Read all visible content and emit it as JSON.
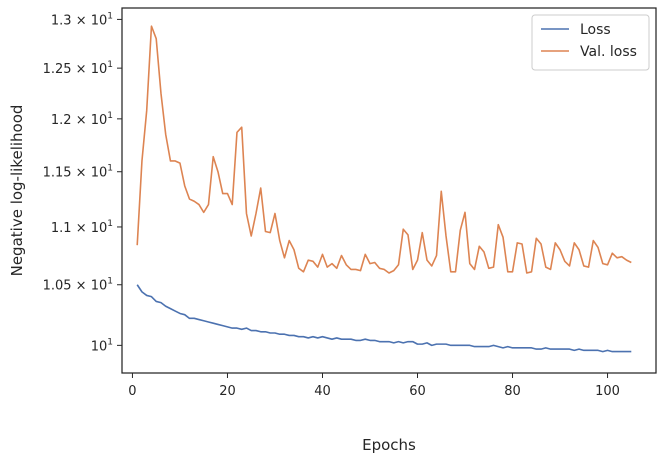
{
  "chart_data": {
    "type": "line",
    "title": "",
    "xlabel": "Epochs",
    "ylabel": "Negative log-likelihood",
    "xlim": [
      -2.2,
      110.2
    ],
    "ylim": [
      9.78,
      13.12
    ],
    "yscale": "log",
    "grid": false,
    "legend": "top-right",
    "xticks": [
      0,
      20,
      40,
      60,
      80,
      100
    ],
    "xtick_labels": [
      "0",
      "20",
      "40",
      "60",
      "80",
      "100"
    ],
    "yticks": [
      10.0,
      10.5,
      11.0,
      11.5,
      12.0,
      12.5,
      13.0
    ],
    "ytick_labels": [
      {
        "mantissa": "",
        "exp": "1"
      },
      {
        "mantissa": "1.05 × ",
        "exp": "1"
      },
      {
        "mantissa": "1.1 × ",
        "exp": "1"
      },
      {
        "mantissa": "1.15 × ",
        "exp": "1"
      },
      {
        "mantissa": "1.2 × ",
        "exp": "1"
      },
      {
        "mantissa": "1.25 × ",
        "exp": "1"
      },
      {
        "mantissa": "1.3 × ",
        "exp": "1"
      }
    ],
    "ytick_base": "10",
    "series": [
      {
        "name": "Loss",
        "color": "#4c72b0",
        "x": [
          1,
          2,
          3,
          4,
          5,
          6,
          7,
          8,
          9,
          10,
          11,
          12,
          13,
          14,
          15,
          16,
          17,
          18,
          19,
          20,
          21,
          22,
          23,
          24,
          25,
          26,
          27,
          28,
          29,
          30,
          31,
          32,
          33,
          34,
          35,
          36,
          37,
          38,
          39,
          40,
          41,
          42,
          43,
          44,
          45,
          46,
          47,
          48,
          49,
          50,
          51,
          52,
          53,
          54,
          55,
          56,
          57,
          58,
          59,
          60,
          61,
          62,
          63,
          64,
          65,
          66,
          67,
          68,
          69,
          70,
          71,
          72,
          73,
          74,
          75,
          76,
          77,
          78,
          79,
          80,
          81,
          82,
          83,
          84,
          85,
          86,
          87,
          88,
          89,
          90,
          91,
          92,
          93,
          94,
          95,
          96,
          97,
          98,
          99,
          100,
          101,
          102,
          103,
          104,
          105
        ],
        "values": [
          10.5,
          10.44,
          10.41,
          10.4,
          10.36,
          10.35,
          10.32,
          10.3,
          10.28,
          10.26,
          10.25,
          10.22,
          10.22,
          10.21,
          10.2,
          10.19,
          10.18,
          10.17,
          10.16,
          10.15,
          10.14,
          10.14,
          10.13,
          10.14,
          10.12,
          10.12,
          10.11,
          10.11,
          10.1,
          10.1,
          10.09,
          10.09,
          10.08,
          10.08,
          10.07,
          10.07,
          10.06,
          10.07,
          10.06,
          10.07,
          10.06,
          10.05,
          10.06,
          10.05,
          10.05,
          10.05,
          10.04,
          10.04,
          10.05,
          10.04,
          10.04,
          10.03,
          10.03,
          10.03,
          10.02,
          10.03,
          10.02,
          10.03,
          10.03,
          10.01,
          10.01,
          10.02,
          10.0,
          10.01,
          10.01,
          10.01,
          10.0,
          10.0,
          10.0,
          10.0,
          10.0,
          9.99,
          9.99,
          9.99,
          9.99,
          10.0,
          9.99,
          9.98,
          9.99,
          9.98,
          9.98,
          9.98,
          9.98,
          9.98,
          9.97,
          9.97,
          9.98,
          9.97,
          9.97,
          9.97,
          9.97,
          9.97,
          9.96,
          9.97,
          9.96,
          9.96,
          9.96,
          9.96,
          9.95,
          9.96,
          9.95,
          9.95,
          9.95,
          9.95,
          9.95
        ]
      },
      {
        "name": "Val. loss",
        "color": "#dd8452",
        "x": [
          1,
          2,
          3,
          4,
          5,
          6,
          7,
          8,
          9,
          10,
          11,
          12,
          13,
          14,
          15,
          16,
          17,
          18,
          19,
          20,
          21,
          22,
          23,
          24,
          25,
          26,
          27,
          28,
          29,
          30,
          31,
          32,
          33,
          34,
          35,
          36,
          37,
          38,
          39,
          40,
          41,
          42,
          43,
          44,
          45,
          46,
          47,
          48,
          49,
          50,
          51,
          52,
          53,
          54,
          55,
          56,
          57,
          58,
          59,
          60,
          61,
          62,
          63,
          64,
          65,
          66,
          67,
          68,
          69,
          70,
          71,
          72,
          73,
          74,
          75,
          76,
          77,
          78,
          79,
          80,
          81,
          82,
          83,
          84,
          85,
          86,
          87,
          88,
          89,
          90,
          91,
          92,
          93,
          94,
          95,
          96,
          97,
          98,
          99,
          100,
          101,
          102,
          103,
          104,
          105
        ],
        "values": [
          10.84,
          11.6,
          12.08,
          12.93,
          12.8,
          12.25,
          11.85,
          11.6,
          11.6,
          11.58,
          11.37,
          11.25,
          11.23,
          11.2,
          11.13,
          11.2,
          11.64,
          11.5,
          11.3,
          11.3,
          11.2,
          11.87,
          11.92,
          11.12,
          10.92,
          11.12,
          11.35,
          10.96,
          10.95,
          11.12,
          10.88,
          10.73,
          10.88,
          10.8,
          10.64,
          10.61,
          10.71,
          10.7,
          10.65,
          10.76,
          10.65,
          10.68,
          10.64,
          10.75,
          10.67,
          10.63,
          10.63,
          10.62,
          10.76,
          10.68,
          10.69,
          10.64,
          10.63,
          10.6,
          10.62,
          10.67,
          10.98,
          10.93,
          10.63,
          10.71,
          10.95,
          10.71,
          10.66,
          10.75,
          11.32,
          10.92,
          10.61,
          10.61,
          10.97,
          11.13,
          10.68,
          10.63,
          10.83,
          10.78,
          10.64,
          10.65,
          11.02,
          10.91,
          10.61,
          10.61,
          10.86,
          10.85,
          10.6,
          10.61,
          10.9,
          10.85,
          10.65,
          10.63,
          10.86,
          10.8,
          10.7,
          10.66,
          10.86,
          10.8,
          10.66,
          10.65,
          10.88,
          10.82,
          10.68,
          10.67,
          10.77,
          10.73,
          10.74,
          10.71,
          10.69
        ]
      }
    ]
  }
}
